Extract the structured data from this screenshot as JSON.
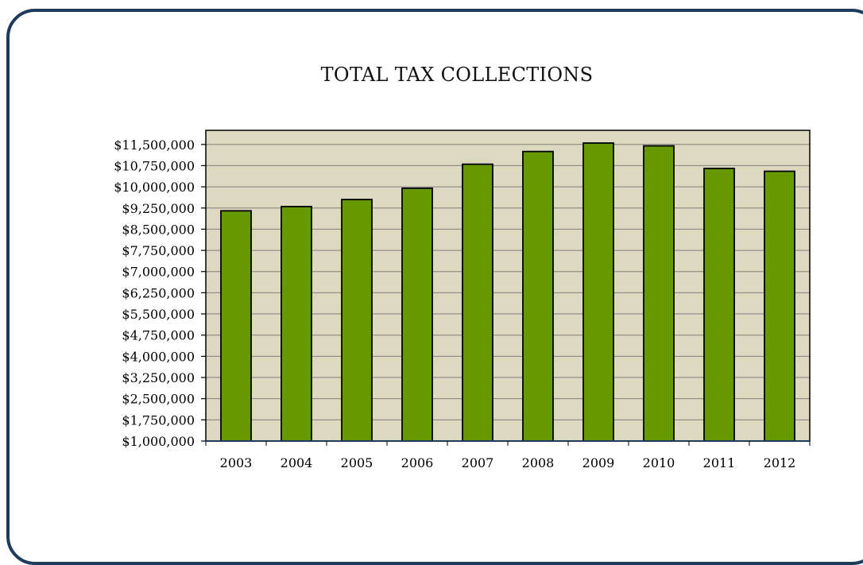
{
  "colors": {
    "frame_border": "#1f3b5c",
    "plot_background": "#ddd8c0",
    "bar_fill": "#669900",
    "bar_stroke": "#000000",
    "gridline": "#7f7f7f"
  },
  "chart_data": {
    "type": "bar",
    "title": "TOTAL TAX COLLECTIONS",
    "xlabel": "",
    "ylabel": "",
    "categories": [
      "2003",
      "2004",
      "2005",
      "2006",
      "2007",
      "2008",
      "2009",
      "2010",
      "2011",
      "2012"
    ],
    "values": [
      9150000,
      9300000,
      9550000,
      9950000,
      10800000,
      11250000,
      11550000,
      11450000,
      10650000,
      10550000
    ],
    "ylim": [
      1000000,
      12000000
    ],
    "y_ticks": [
      1000000,
      1750000,
      2500000,
      3250000,
      4000000,
      4750000,
      5500000,
      6250000,
      7000000,
      7750000,
      8500000,
      9250000,
      10000000,
      10750000,
      11500000
    ],
    "y_tick_labels": [
      "$1,000,000",
      "$1,750,000",
      "$2,500,000",
      "$3,250,000",
      "$4,000,000",
      "$4,750,000",
      "$5,500,000",
      "$6,250,000",
      "$7,000,000",
      "$7,750,000",
      "$8,500,000",
      "$9,250,000",
      "$10,000,000",
      "$10,750,000",
      "$11,500,000"
    ],
    "grid": true,
    "legend": "none"
  }
}
